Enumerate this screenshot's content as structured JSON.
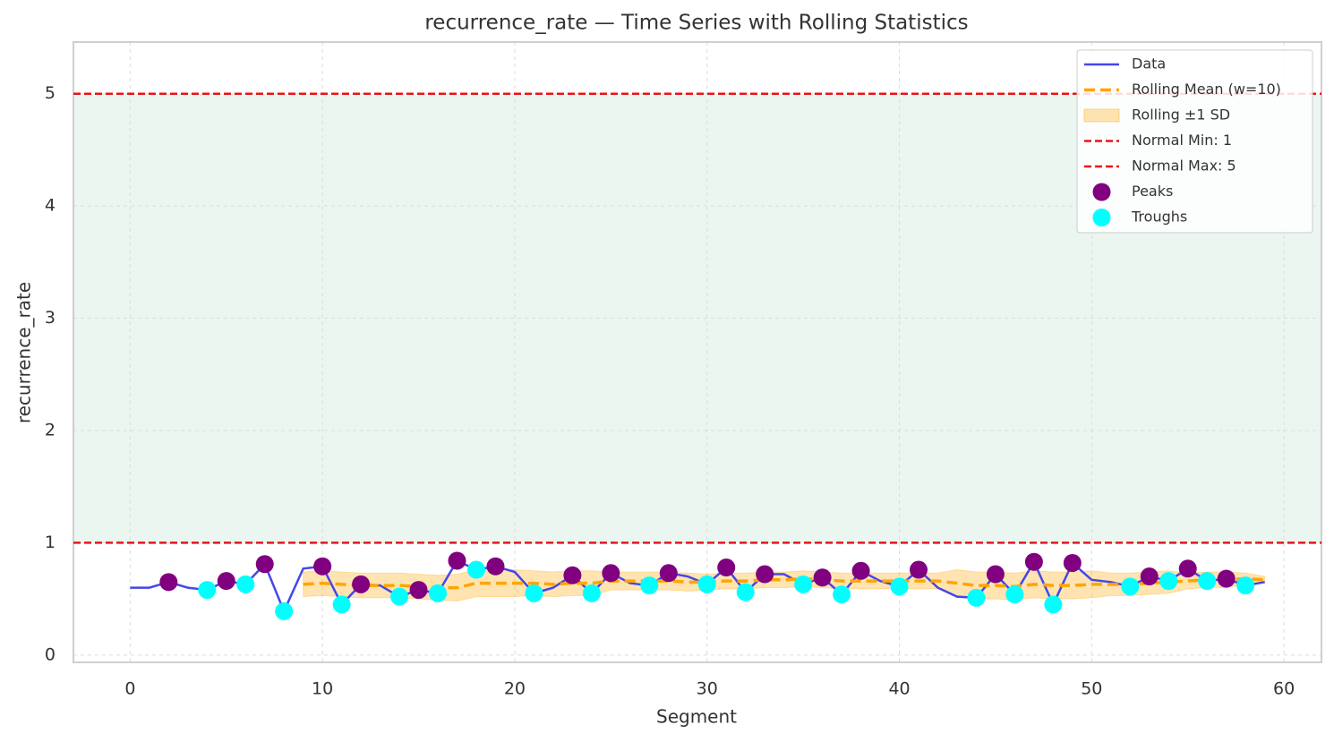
{
  "chart_data": {
    "type": "line",
    "title": "recurrence_rate — Time Series with Rolling Statistics",
    "xlabel": "Segment",
    "ylabel": "recurrence_rate",
    "xlim": [
      -2.95,
      61.95
    ],
    "ylim": [
      -0.065,
      5.46
    ],
    "xticks": [
      0,
      10,
      20,
      30,
      40,
      50,
      60
    ],
    "yticks": [
      0,
      1,
      2,
      3,
      4,
      5
    ],
    "grid": true,
    "legend": "upper right",
    "x": [
      0,
      1,
      2,
      3,
      4,
      5,
      6,
      7,
      8,
      9,
      10,
      11,
      12,
      13,
      14,
      15,
      16,
      17,
      18,
      19,
      20,
      21,
      22,
      23,
      24,
      25,
      26,
      27,
      28,
      29,
      30,
      31,
      32,
      33,
      34,
      35,
      36,
      37,
      38,
      39,
      40,
      41,
      42,
      43,
      44,
      45,
      46,
      47,
      48,
      49,
      50,
      51,
      52,
      53,
      54,
      55,
      56,
      57,
      58,
      59
    ],
    "series": [
      {
        "name": "Data",
        "color": "#4646ea",
        "values": [
          0.6,
          0.6,
          0.65,
          0.6,
          0.58,
          0.66,
          0.63,
          0.81,
          0.39,
          0.77,
          0.79,
          0.45,
          0.63,
          0.62,
          0.52,
          0.58,
          0.55,
          0.84,
          0.76,
          0.79,
          0.74,
          0.55,
          0.6,
          0.71,
          0.55,
          0.73,
          0.64,
          0.62,
          0.73,
          0.7,
          0.63,
          0.78,
          0.56,
          0.72,
          0.72,
          0.63,
          0.69,
          0.54,
          0.75,
          0.66,
          0.61,
          0.76,
          0.6,
          0.52,
          0.51,
          0.72,
          0.54,
          0.83,
          0.45,
          0.82,
          0.67,
          0.65,
          0.61,
          0.7,
          0.66,
          0.77,
          0.66,
          0.68,
          0.62,
          0.65
        ]
      },
      {
        "name": "Rolling Mean (w=10)",
        "color": "#ffa500",
        "dashed": true,
        "values": [
          null,
          null,
          null,
          null,
          null,
          null,
          null,
          null,
          null,
          0.63,
          0.64,
          0.63,
          0.62,
          0.62,
          0.62,
          0.61,
          0.6,
          0.6,
          0.64,
          0.64,
          0.64,
          0.64,
          0.63,
          0.64,
          0.64,
          0.66,
          0.66,
          0.66,
          0.66,
          0.65,
          0.65,
          0.66,
          0.66,
          0.67,
          0.67,
          0.68,
          0.67,
          0.66,
          0.66,
          0.66,
          0.66,
          0.66,
          0.66,
          0.64,
          0.62,
          0.62,
          0.61,
          0.63,
          0.62,
          0.62,
          0.63,
          0.63,
          0.63,
          0.64,
          0.65,
          0.66,
          0.67,
          0.67,
          0.68,
          0.67
        ]
      }
    ],
    "band": {
      "name": "Rolling ±1 SD",
      "color": "#ffa500",
      "values": [
        null,
        null,
        null,
        null,
        null,
        null,
        null,
        null,
        null,
        0.11,
        0.11,
        0.11,
        0.11,
        0.11,
        0.11,
        0.11,
        0.11,
        0.12,
        0.12,
        0.12,
        0.12,
        0.11,
        0.11,
        0.11,
        0.11,
        0.08,
        0.08,
        0.08,
        0.08,
        0.08,
        0.07,
        0.07,
        0.07,
        0.07,
        0.07,
        0.07,
        0.07,
        0.07,
        0.07,
        0.07,
        0.07,
        0.07,
        0.07,
        0.12,
        0.12,
        0.12,
        0.12,
        0.12,
        0.12,
        0.12,
        0.12,
        0.1,
        0.1,
        0.1,
        0.1,
        0.07,
        0.07,
        0.07,
        0.05,
        0.03
      ]
    },
    "thresholds": [
      {
        "name": "Normal Min: 1",
        "value": 1,
        "color": "#e8141a"
      },
      {
        "name": "Normal Max: 5",
        "value": 5,
        "color": "#e8141a"
      }
    ],
    "region_color": "#ecf6f0",
    "markers": [
      {
        "name": "Peaks",
        "color": "#800080",
        "x": [
          2,
          5,
          7,
          10,
          12,
          15,
          17,
          19,
          23,
          25,
          28,
          31,
          33,
          36,
          38,
          41,
          45,
          47,
          49,
          53,
          55,
          57
        ],
        "values": [
          0.65,
          0.66,
          0.81,
          0.79,
          0.63,
          0.58,
          0.84,
          0.79,
          0.71,
          0.73,
          0.73,
          0.78,
          0.72,
          0.69,
          0.75,
          0.76,
          0.72,
          0.83,
          0.82,
          0.7,
          0.77,
          0.68
        ]
      },
      {
        "name": "Troughs",
        "color": "#00ffff",
        "x": [
          4,
          6,
          8,
          11,
          14,
          16,
          18,
          21,
          24,
          27,
          30,
          32,
          35,
          37,
          40,
          44,
          46,
          48,
          52,
          54,
          56,
          58
        ],
        "values": [
          0.58,
          0.63,
          0.39,
          0.45,
          0.52,
          0.55,
          0.76,
          0.55,
          0.55,
          0.62,
          0.63,
          0.56,
          0.63,
          0.54,
          0.61,
          0.51,
          0.54,
          0.45,
          0.61,
          0.66,
          0.66,
          0.62
        ]
      }
    ]
  }
}
